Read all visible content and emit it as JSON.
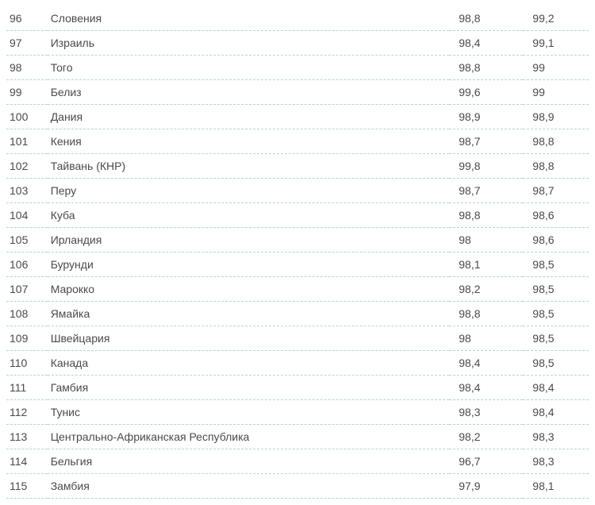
{
  "table": {
    "rows": [
      {
        "rank": "96",
        "country": "Словения",
        "val1": "98,8",
        "val2": "99,2"
      },
      {
        "rank": "97",
        "country": "Израиль",
        "val1": "98,4",
        "val2": "99,1"
      },
      {
        "rank": "98",
        "country": "Того",
        "val1": "98,8",
        "val2": "99"
      },
      {
        "rank": "99",
        "country": "Белиз",
        "val1": "99,6",
        "val2": "99"
      },
      {
        "rank": "100",
        "country": "Дания",
        "val1": "98,9",
        "val2": "98,9"
      },
      {
        "rank": "101",
        "country": "Кения",
        "val1": "98,7",
        "val2": "98,8"
      },
      {
        "rank": "102",
        "country": "Тайвань (КНР)",
        "val1": "99,8",
        "val2": "98,8"
      },
      {
        "rank": "103",
        "country": "Перу",
        "val1": "98,7",
        "val2": "98,7"
      },
      {
        "rank": "104",
        "country": "Куба",
        "val1": "98,8",
        "val2": "98,6"
      },
      {
        "rank": "105",
        "country": "Ирландия",
        "val1": "98",
        "val2": "98,6"
      },
      {
        "rank": "106",
        "country": "Бурунди",
        "val1": "98,1",
        "val2": "98,5"
      },
      {
        "rank": "107",
        "country": "Марокко",
        "val1": "98,2",
        "val2": "98,5"
      },
      {
        "rank": "108",
        "country": "Ямайка",
        "val1": "98,8",
        "val2": "98,5"
      },
      {
        "rank": "109",
        "country": "Швейцария",
        "val1": "98",
        "val2": "98,5"
      },
      {
        "rank": "110",
        "country": "Канада",
        "val1": "98,4",
        "val2": "98,5"
      },
      {
        "rank": "111",
        "country": "Гамбия",
        "val1": "98,4",
        "val2": "98,4"
      },
      {
        "rank": "112",
        "country": "Тунис",
        "val1": "98,3",
        "val2": "98,4"
      },
      {
        "rank": "113",
        "country": "Центрально-Африканская Республика",
        "val1": "98,2",
        "val2": "98,3"
      },
      {
        "rank": "114",
        "country": "Бельгия",
        "val1": "96,7",
        "val2": "98,3"
      },
      {
        "rank": "115",
        "country": "Замбия",
        "val1": "97,9",
        "val2": "98,1"
      }
    ],
    "colors": {
      "text": "#4a4a4a",
      "border": "#b8d4d0",
      "background": "#ffffff"
    },
    "font_size": 14
  }
}
